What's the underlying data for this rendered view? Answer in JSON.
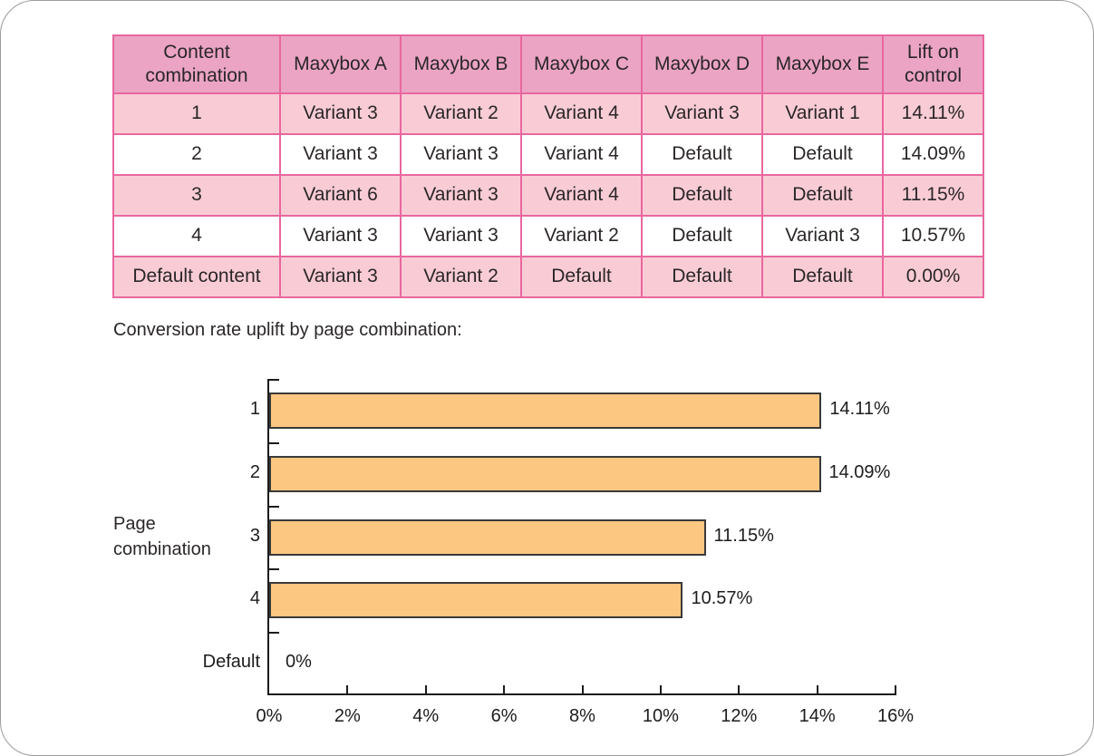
{
  "table": {
    "columns": [
      "Content combination",
      "Maxybox A",
      "Maxybox B",
      "Maxybox C",
      "Maxybox D",
      "Maxybox E",
      "Lift on control"
    ],
    "rows": [
      {
        "label": "1",
        "cells": [
          "Variant 3",
          "Variant 2",
          "Variant 4",
          "Variant 3",
          "Variant 1"
        ],
        "lift": "14.11%",
        "shaded": true
      },
      {
        "label": "2",
        "cells": [
          "Variant 3",
          "Variant 3",
          "Variant 4",
          "Default",
          "Default"
        ],
        "lift": "14.09%",
        "shaded": false
      },
      {
        "label": "3",
        "cells": [
          "Variant 6",
          "Variant 3",
          "Variant 4",
          "Default",
          "Default"
        ],
        "lift": "11.15%",
        "shaded": true
      },
      {
        "label": "4",
        "cells": [
          "Variant 3",
          "Variant 3",
          "Variant 2",
          "Default",
          "Variant 3"
        ],
        "lift": "10.57%",
        "shaded": false
      },
      {
        "label": "Default content",
        "cells": [
          "Variant 3",
          "Variant 2",
          "Default",
          "Default",
          "Default"
        ],
        "lift": "0.00%",
        "shaded": true
      }
    ],
    "colors": {
      "header_bg": "#eba4c4",
      "shaded_row_bg": "#f9ccd5",
      "plain_row_bg": "#ffffff",
      "border": "#e9679f",
      "text": "#2a2629"
    }
  },
  "chart_caption": "Conversion rate uplift by page combination:",
  "chart_data": {
    "type": "bar",
    "orientation": "horizontal",
    "title": "Conversion rate uplift by page combination",
    "categories": [
      "1",
      "2",
      "3",
      "4",
      "Default"
    ],
    "values": [
      14.11,
      14.09,
      11.15,
      10.57,
      0
    ],
    "bar_labels": [
      "14.11%",
      "14.09%",
      "11.15%",
      "10.57%",
      "0%"
    ],
    "ylabel": "Page combination",
    "xlabel": "",
    "xlim": [
      0,
      16
    ],
    "x_tick_step": 2,
    "x_tick_labels": [
      "0%",
      "2%",
      "4%",
      "6%",
      "8%",
      "10%",
      "12%",
      "14%",
      "16%"
    ],
    "grid": false,
    "legend": "none",
    "bar_color": "#fcc780",
    "bar_border_color": "#3a3a3a",
    "axis_color": "#1c1c1c"
  }
}
